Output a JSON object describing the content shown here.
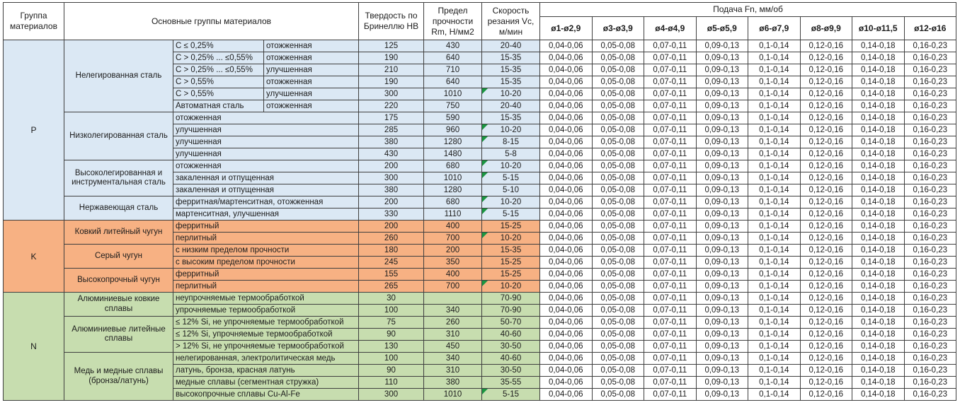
{
  "header": {
    "group_col": "Группа материалов",
    "main_groups_col": "Основные группы материалов",
    "hardness_col": "Твердость по Бринеллю НВ",
    "strength_col": "Предел прочности Rm, Н/мм2",
    "speed_col": "Скорость резания Vc, м/мин",
    "feed_title": "Подача Fn, мм/об",
    "feed_cols": [
      "ø1-ø2,9",
      "ø3-ø3,9",
      "ø4-ø4,9",
      "ø5-ø5,9",
      "ø6-ø7,9",
      "ø8-ø9,9",
      "ø10-ø11,5",
      "ø12-ø16"
    ]
  },
  "feed_values": [
    "0,04-0,06",
    "0,05-0,08",
    "0,07-0,11",
    "0,09-0,13",
    "0,1-0,14",
    "0,12-0,16",
    "0,14-0,18",
    "0,16-0,23"
  ],
  "colors": {
    "group_p": "#dbe8f4",
    "group_k": "#f7b183",
    "group_n": "#c7ddaf",
    "comment_indicator": "#1a9641",
    "border": "#3f3f3f"
  },
  "groups": [
    {
      "letter": "P",
      "color": "#dbe8f4",
      "families": [
        {
          "name": "Нелегированная сталь",
          "rows": [
            {
              "cond": "C ≤ 0,25%",
              "state": "отожженная",
              "hb": "125",
              "rm": "430",
              "vc": "20-40",
              "note": false
            },
            {
              "cond": "C > 0,25% ... ≤0,55%",
              "state": "отожженная",
              "hb": "190",
              "rm": "640",
              "vc": "15-35",
              "note": false
            },
            {
              "cond": "C > 0,25% ... ≤0,55%",
              "state": "улучшенная",
              "hb": "210",
              "rm": "710",
              "vc": "15-35",
              "note": false
            },
            {
              "cond": "C > 0,55%",
              "state": "отожженная",
              "hb": "190",
              "rm": "640",
              "vc": "15-35",
              "note": false
            },
            {
              "cond": "C > 0,55%",
              "state": "улучшенная",
              "hb": "300",
              "rm": "1010",
              "vc": "10-20",
              "note": true
            },
            {
              "cond": "Автоматная сталь",
              "state": "отожженная",
              "hb": "220",
              "rm": "750",
              "vc": "20-40",
              "note": false
            }
          ]
        },
        {
          "name": "Низколегированная сталь",
          "rows": [
            {
              "desc": "отожженная",
              "hb": "175",
              "rm": "590",
              "vc": "15-35",
              "note": false
            },
            {
              "desc": "улучшенная",
              "hb": "285",
              "rm": "960",
              "vc": "10-20",
              "note": true
            },
            {
              "desc": "улучшенная",
              "hb": "380",
              "rm": "1280",
              "vc": "8-15",
              "note": true
            },
            {
              "desc": "улучшенная",
              "hb": "430",
              "rm": "1480",
              "vc": "5-8",
              "note": false
            }
          ]
        },
        {
          "name": "Высоколегированная и инструментальная сталь",
          "rows": [
            {
              "desc": "отожженная",
              "hb": "200",
              "rm": "680",
              "vc": "10-20",
              "note": true
            },
            {
              "desc": "закаленная и отпущенная",
              "hb": "300",
              "rm": "1010",
              "vc": "5-15",
              "note": true
            },
            {
              "desc": "закаленная и отпущенная",
              "hb": "380",
              "rm": "1280",
              "vc": "5-10",
              "note": false
            }
          ]
        },
        {
          "name": "Нержавеющая сталь",
          "rows": [
            {
              "desc": "ферритная/мартенситная, отожженная",
              "hb": "200",
              "rm": "680",
              "vc": "10-20",
              "note": true
            },
            {
              "desc": "мартенситная, улучшенная",
              "hb": "330",
              "rm": "1110",
              "vc": "5-15",
              "note": true
            }
          ]
        }
      ]
    },
    {
      "letter": "K",
      "color": "#f7b183",
      "families": [
        {
          "name": "Ковкий литейный чугун",
          "rows": [
            {
              "desc": "ферритный",
              "hb": "200",
              "rm": "400",
              "vc": "15-25",
              "note": false
            },
            {
              "desc": "перлитный",
              "hb": "260",
              "rm": "700",
              "vc": "10-20",
              "note": true
            }
          ]
        },
        {
          "name": "Серый чугун",
          "rows": [
            {
              "desc": "с низким пределом прочности",
              "hb": "180",
              "rm": "200",
              "vc": "15-35",
              "note": false
            },
            {
              "desc": "с высоким пределом прочности",
              "hb": "245",
              "rm": "350",
              "vc": "15-25",
              "note": false
            }
          ]
        },
        {
          "name": "Высокопрочный чугун",
          "rows": [
            {
              "desc": "ферритный",
              "hb": "155",
              "rm": "400",
              "vc": "15-25",
              "note": false
            },
            {
              "desc": "перлитный",
              "hb": "265",
              "rm": "700",
              "vc": "10-20",
              "note": true
            }
          ]
        }
      ]
    },
    {
      "letter": "N",
      "color": "#c7ddaf",
      "families": [
        {
          "name": "Алюминиевые ковкие сплавы",
          "rows": [
            {
              "desc": "неупрочняемые термообработкой",
              "hb": "30",
              "rm": "",
              "vc": "70-90",
              "note": false
            },
            {
              "desc": "упрочняемые термообработкой",
              "hb": "100",
              "rm": "340",
              "vc": "70-90",
              "note": false
            }
          ]
        },
        {
          "name": "Алюминиевые литейные сплавы",
          "rows": [
            {
              "desc": "≤ 12% Si, не упрочняемые термообработкой",
              "hb": "75",
              "rm": "260",
              "vc": "50-70",
              "note": false
            },
            {
              "desc": "≤ 12% Si, упрочняемые термообработкой",
              "hb": "90",
              "rm": "310",
              "vc": "40-60",
              "note": false
            },
            {
              "desc": "> 12% Si, не упрочняемые термообработкой",
              "hb": "130",
              "rm": "450",
              "vc": "30-50",
              "note": false
            }
          ]
        },
        {
          "name": "Медь и медные сплавы (бронза/латунь)",
          "rows": [
            {
              "desc": "нелегированная, электролитическая медь",
              "hb": "100",
              "rm": "340",
              "vc": "40-60",
              "note": false
            },
            {
              "desc": "латунь, бронза, красная латунь",
              "hb": "90",
              "rm": "310",
              "vc": "30-50",
              "note": false
            },
            {
              "desc": "медные сплавы (сегментная стружка)",
              "hb": "110",
              "rm": "380",
              "vc": "35-55",
              "note": false
            },
            {
              "desc": "высокопрочные сплавы Cu-Al-Fe",
              "hb": "300",
              "rm": "1010",
              "vc": "5-15",
              "note": true
            }
          ]
        }
      ]
    }
  ]
}
